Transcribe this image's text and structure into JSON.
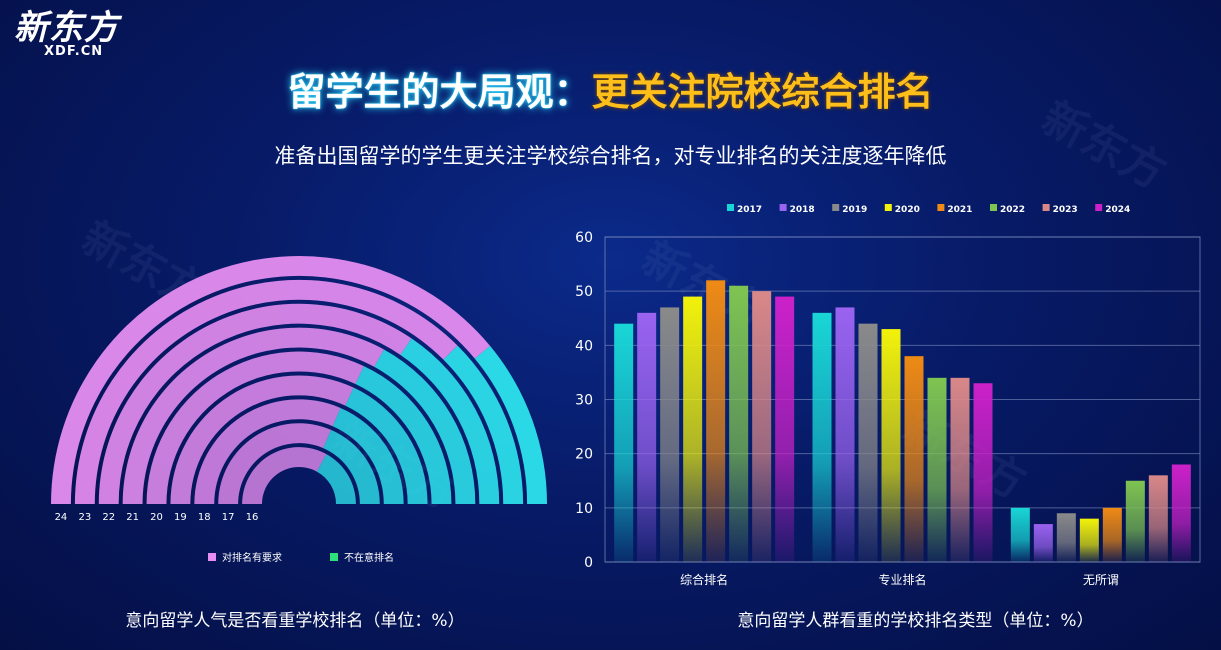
{
  "logo": {
    "main": "新东方",
    "sub": "XDF.CN"
  },
  "title": {
    "part1": "留学生的大局观：",
    "part2": "更关注院校综合排名"
  },
  "subtitle": "准备出国留学的学生更关注学校综合排名，对专业排名的关注度逐年降低",
  "colors": {
    "accent_title": "#ffbf1a",
    "pink": "#e58df0",
    "cyan": "#2fe8f0"
  },
  "chart_data": [
    {
      "type": "pie",
      "subtype": "nested-semicircle",
      "title": "意向留学人气是否看重学校排名（单位：%）",
      "rings": [
        "24",
        "23",
        "22",
        "21",
        "20",
        "19",
        "18",
        "17",
        "16"
      ],
      "series": [
        {
          "name": "对排名有要求",
          "values": [
            78,
            75,
            69,
            66,
            64,
            64,
            63,
            63,
            66
          ]
        },
        {
          "name": "不在意排名",
          "values": [
            22,
            25,
            31,
            34,
            36,
            36,
            37,
            37,
            34
          ]
        }
      ],
      "legend": "bottom"
    },
    {
      "type": "bar",
      "title": "意向留学人群看重的学校排名类型（单位：%）",
      "categories": [
        "综合排名",
        "专业排名",
        "无所谓"
      ],
      "series": [
        {
          "name": "2017",
          "values": [
            44,
            46,
            10
          ],
          "color": "#19d6d6"
        },
        {
          "name": "2018",
          "values": [
            46,
            47,
            7
          ],
          "color": "#9a63f0"
        },
        {
          "name": "2019",
          "values": [
            47,
            44,
            9
          ],
          "color": "#8a8a8a"
        },
        {
          "name": "2020",
          "values": [
            49,
            43,
            8
          ],
          "color": "#f2f20a"
        },
        {
          "name": "2021",
          "values": [
            52,
            38,
            10
          ],
          "color": "#ef8a14"
        },
        {
          "name": "2022",
          "values": [
            51,
            34,
            15
          ],
          "color": "#7fc451"
        },
        {
          "name": "2023",
          "values": [
            50,
            34,
            16
          ],
          "color": "#d98888"
        },
        {
          "name": "2024",
          "values": [
            49,
            33,
            18
          ],
          "color": "#cc21c9"
        }
      ],
      "yticks": [
        "0",
        "10",
        "20",
        "30",
        "40",
        "50",
        "60"
      ],
      "ylim": [
        0,
        60
      ],
      "grid": true,
      "legend": "top"
    }
  ]
}
